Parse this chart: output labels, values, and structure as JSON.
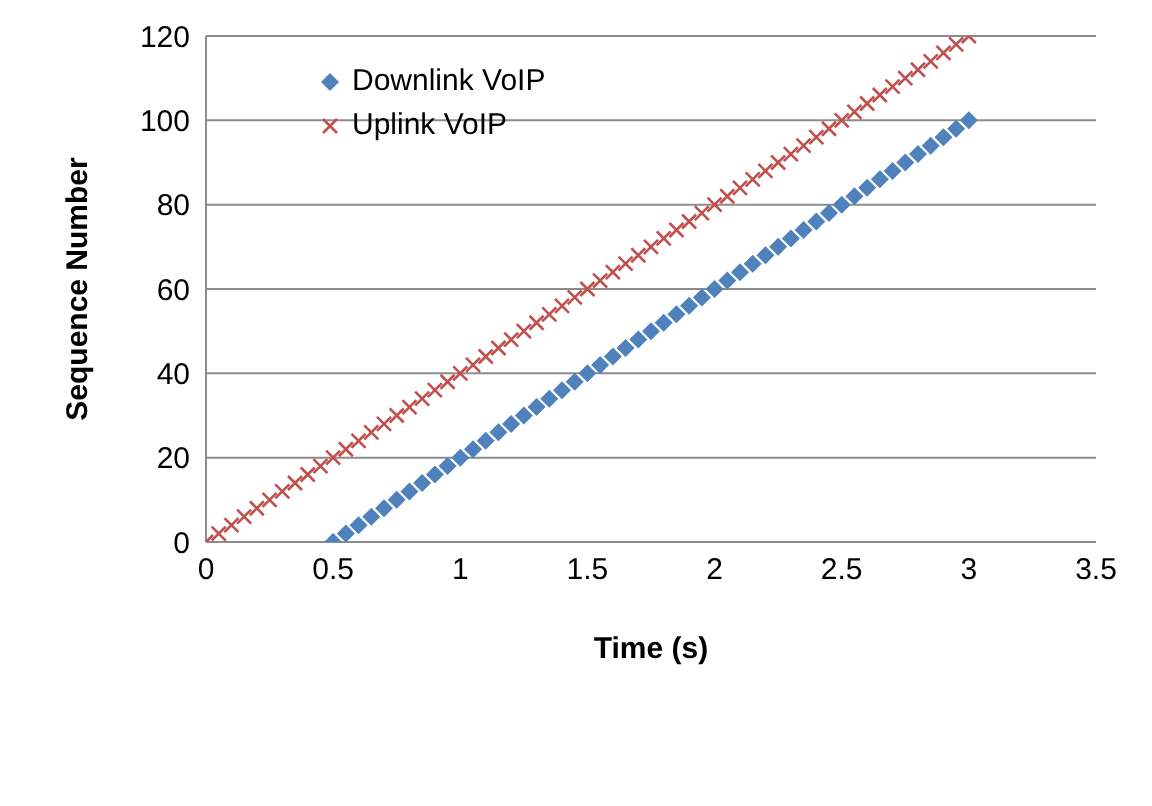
{
  "chart_data": {
    "type": "scatter",
    "xlabel": "Time (s)",
    "ylabel": "Sequence Number",
    "xlim": [
      0,
      3.5
    ],
    "xticks": [
      0,
      0.5,
      1,
      1.5,
      2,
      2.5,
      3,
      3.5
    ],
    "ylim": [
      0,
      120
    ],
    "yticks": [
      0,
      20,
      40,
      60,
      80,
      100,
      120
    ],
    "grid": "y",
    "legend": "top left",
    "series": [
      {
        "name": "Downlink VoIP",
        "color": "#4f81bd",
        "marker": "diamond",
        "x": [
          0.5,
          0.55,
          0.6,
          0.65,
          0.7,
          0.75,
          0.8,
          0.85,
          0.9,
          0.95,
          1,
          1.05,
          1.1,
          1.15,
          1.2,
          1.25,
          1.3,
          1.35,
          1.4,
          1.45,
          1.5,
          1.55,
          1.6,
          1.65,
          1.7,
          1.75,
          1.8,
          1.85,
          1.9,
          1.95,
          2,
          2.05,
          2.1,
          2.15,
          2.2,
          2.25,
          2.3,
          2.35,
          2.4,
          2.45,
          2.5,
          2.55,
          2.6,
          2.65,
          2.7,
          2.75,
          2.8,
          2.85,
          2.9,
          2.95,
          3
        ],
        "values": [
          0,
          2,
          4,
          6,
          8,
          10,
          12,
          14,
          16,
          18,
          20,
          22,
          24,
          26,
          28,
          30,
          32,
          34,
          36,
          38,
          40,
          42,
          44,
          46,
          48,
          50,
          52,
          54,
          56,
          58,
          60,
          62,
          64,
          66,
          68,
          70,
          72,
          74,
          76,
          78,
          80,
          82,
          84,
          86,
          88,
          90,
          92,
          94,
          96,
          98,
          100
        ]
      },
      {
        "name": "Uplink VoIP",
        "color": "#c0504d",
        "marker": "cross",
        "x": [
          0,
          0.05,
          0.1,
          0.15,
          0.2,
          0.25,
          0.3,
          0.35,
          0.4,
          0.45,
          0.5,
          0.55,
          0.6,
          0.65,
          0.7,
          0.75,
          0.8,
          0.85,
          0.9,
          0.95,
          1,
          1.05,
          1.1,
          1.15,
          1.2,
          1.25,
          1.3,
          1.35,
          1.4,
          1.45,
          1.5,
          1.55,
          1.6,
          1.65,
          1.7,
          1.75,
          1.8,
          1.85,
          1.9,
          1.95,
          2,
          2.05,
          2.1,
          2.15,
          2.2,
          2.25,
          2.3,
          2.35,
          2.4,
          2.45,
          2.5,
          2.55,
          2.6,
          2.65,
          2.7,
          2.75,
          2.8,
          2.85,
          2.9,
          2.95,
          3
        ],
        "values": [
          0,
          2,
          4,
          6,
          8,
          10,
          12,
          14,
          16,
          18,
          20,
          22,
          24,
          26,
          28,
          30,
          32,
          34,
          36,
          38,
          40,
          42,
          44,
          46,
          48,
          50,
          52,
          54,
          56,
          58,
          60,
          62,
          64,
          66,
          68,
          70,
          72,
          74,
          76,
          78,
          80,
          82,
          84,
          86,
          88,
          90,
          92,
          94,
          96,
          98,
          100,
          102,
          104,
          106,
          108,
          110,
          112,
          114,
          116,
          118,
          120
        ]
      }
    ]
  }
}
